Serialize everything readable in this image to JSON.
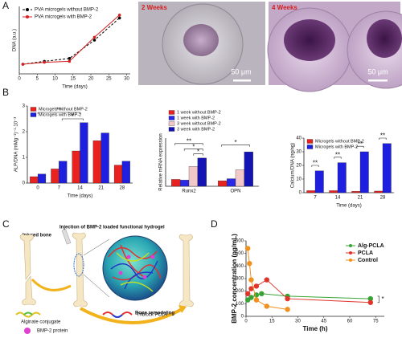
{
  "panels": {
    "a": "A",
    "b": "B",
    "c": "C",
    "d": "D"
  },
  "micrographs": [
    {
      "label": "2 Weeks",
      "scale": "50 μm"
    },
    {
      "label": "4 Weeks",
      "scale": "50 μm"
    }
  ],
  "diagram": {
    "injured": "Injured bone",
    "injection": "Injection of BMP-2 loaded functional hydrogel",
    "remodeling": "Bone remodeling",
    "legend": [
      "Alginate conjugate",
      "Triblock PCLA",
      "BMP-2 protein"
    ]
  },
  "chart_data": [
    {
      "type": "line",
      "xlabel": "Time (days)",
      "ylabel": "DNA (a.u.)",
      "x": [
        1,
        7,
        14,
        21,
        28
      ],
      "xlim": [
        0,
        31
      ],
      "xticks": [
        0,
        5,
        10,
        15,
        20,
        25,
        30
      ],
      "ylim": [
        0,
        7
      ],
      "legend": "upper left",
      "series": [
        {
          "name": "PVA microgels without BMP-2",
          "color": "#000000",
          "dashed": true,
          "values": [
            1.0,
            1.3,
            1.6,
            3.5,
            5.8
          ]
        },
        {
          "name": "PVA microgels with BMP-2",
          "color": "#d62020",
          "dashed": false,
          "values": [
            1.0,
            1.2,
            1.3,
            3.8,
            6.1
          ]
        }
      ]
    },
    {
      "type": "bar",
      "xlabel": "Time (days)",
      "ylabel": "ALP/DNA (mMg⁻¹)⁻¹·10⁻³",
      "categories": [
        "0",
        "7",
        "14",
        "21",
        "28"
      ],
      "ylim": [
        0,
        3
      ],
      "yticks": [
        0,
        1,
        2,
        3
      ],
      "legend": "upper left",
      "series": [
        {
          "name": "Microgels without BMP-2",
          "color": "#e8231f",
          "values": [
            0.25,
            0.55,
            1.25,
            1.65,
            0.7
          ]
        },
        {
          "name": "Microgels with BMP-2",
          "color": "#1f1fe0",
          "values": [
            0.35,
            0.85,
            2.35,
            1.95,
            0.85
          ]
        }
      ],
      "annotations": [
        "**",
        "*"
      ]
    },
    {
      "type": "bar",
      "ylabel": "Relative mRNA expression",
      "categories": [
        "Runx2",
        "OPN"
      ],
      "ylim": [
        0,
        7
      ],
      "legend": "top",
      "series": [
        {
          "name": "1 week without BMP-2",
          "color": "#e8231f",
          "values": [
            1.0,
            0.8
          ]
        },
        {
          "name": "1 week with BMP-2",
          "color": "#2a2ae6",
          "values": [
            0.9,
            1.1
          ]
        },
        {
          "name": "3 week without BMP-2",
          "color": "#f2c8c8",
          "values": [
            2.9,
            2.4
          ]
        },
        {
          "name": "3 week with BMP-2",
          "color": "#1414b4",
          "values": [
            4.1,
            5.0
          ]
        }
      ],
      "annotations": [
        "**",
        "*",
        "*",
        "*"
      ]
    },
    {
      "type": "bar",
      "xlabel": "Time (days)",
      "ylabel": "Calcium/DNA (ng/ng)",
      "categories": [
        "7",
        "14",
        "21",
        "28"
      ],
      "ylim": [
        0,
        40
      ],
      "yticks": [
        0,
        10,
        20,
        30,
        40
      ],
      "legend": "upper left",
      "series": [
        {
          "name": "Microgels without BMP-2",
          "color": "#e8231f",
          "values": [
            1.5,
            1.5,
            1.0,
            1.2
          ]
        },
        {
          "name": "Microgels with BMP-2",
          "color": "#1f1fe0",
          "values": [
            16,
            22,
            30,
            36
          ]
        }
      ],
      "annotations": [
        "**",
        "**",
        "**",
        "**"
      ]
    },
    {
      "type": "line",
      "xlabel": "Time (h)",
      "ylabel": "BMP-2 concentration (pg/mL)",
      "xlim": [
        0,
        80
      ],
      "xticks": [
        0,
        15,
        30,
        45,
        60,
        75
      ],
      "ylim": [
        0,
        600
      ],
      "yticks": [
        0,
        100,
        200,
        300,
        400,
        500,
        600
      ],
      "legend": "upper right",
      "series": [
        {
          "name": "Alg-PCLA",
          "color": "#3aa336",
          "dashed": false,
          "x": [
            1,
            3,
            6,
            9,
            24,
            72
          ],
          "values": [
            130,
            150,
            170,
            180,
            160,
            140
          ]
        },
        {
          "name": "PCLA",
          "color": "#e0352b",
          "dashed": false,
          "x": [
            1,
            3,
            6,
            12,
            24,
            72
          ],
          "values": [
            180,
            220,
            240,
            290,
            140,
            110
          ]
        },
        {
          "name": "Control",
          "color": "#f0901e",
          "dashed": false,
          "x": [
            1,
            2,
            3,
            6,
            12,
            24
          ],
          "values": [
            540,
            420,
            290,
            130,
            80,
            55
          ]
        }
      ],
      "annotations": [
        "*"
      ]
    }
  ]
}
